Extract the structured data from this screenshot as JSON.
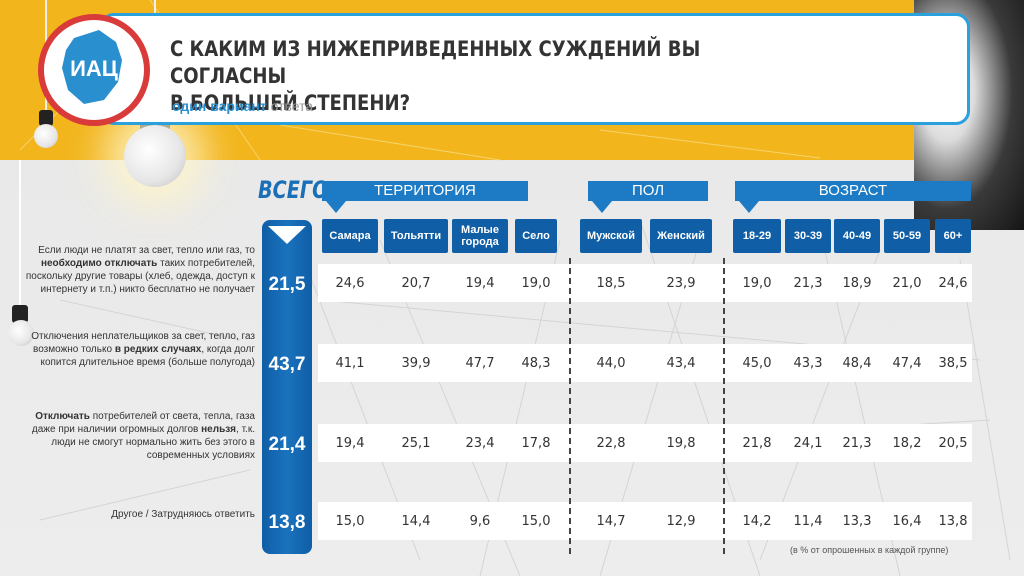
{
  "logo_text": "ИАЦ",
  "title_line1": "С КАКИМ ИЗ НИЖЕПРИВЕДЕННЫХ СУЖДЕНИЙ ВЫ СОГЛАСНЫ",
  "title_line2": "В БОЛЬШЕЙ СТЕПЕНИ?",
  "subtitle_accent": "один вариант",
  "subtitle_light": "ответа",
  "total_label": "ВСЕГО",
  "groups": [
    "ТЕРРИТОРИЯ",
    "ПОЛ",
    "ВОЗРАСТ"
  ],
  "columns": [
    {
      "label": "Самара"
    },
    {
      "label": "Тольятти"
    },
    {
      "label": "Малые города"
    },
    {
      "label": "Село"
    },
    {
      "label": "Мужской"
    },
    {
      "label": "Женский"
    },
    {
      "label": "18-29"
    },
    {
      "label": "30-39"
    },
    {
      "label": "40-49"
    },
    {
      "label": "50-59"
    },
    {
      "label": "60+"
    }
  ],
  "rows": [
    {
      "parts": [
        "Если люди не платят за свет, тепло или газ, то ",
        "необходимо отключать",
        " таких потребителей, поскольку другие товары (хлеб, одежда, доступ к интернету и т.п.) никто бесплатно не получает"
      ]
    },
    {
      "parts": [
        "Отключения неплательщиков за свет, тепло, газ возможно только ",
        "в редких случаях",
        ", когда долг копится длительное время (больше полугода)"
      ]
    },
    {
      "parts": [
        "",
        "Отключать",
        " потребителей от света, тепла, газа даже при наличии огромных долгов ",
        "нельзя",
        ", т.к. люди не смогут нормально жить без этого в современных условиях"
      ]
    },
    {
      "parts": [
        "Другое / Затрудняюсь ответить"
      ]
    }
  ],
  "chart_data": {
    "type": "table",
    "row_labels": [
      "Если люди не платят за свет, тепло или газ, то необходимо отключать таких потребителей, поскольку другие товары (хлеб, одежда, доступ к интернету и т.п.) никто бесплатно не получает",
      "Отключения неплательщиков за свет, тепло, газ возможно только в редких случаях, когда долг копится длительное время (больше полугода)",
      "Отключать потребителей от света, тепла, газа даже при наличии огромных долгов нельзя, т.к. люди не смогут нормально жить без этого в современных условиях",
      "Другое / Затрудняюсь ответить"
    ],
    "total": [
      "21,5",
      "43,7",
      "21,4",
      "13,8"
    ],
    "columns": [
      "Самара",
      "Тольятти",
      "Малые города",
      "Село",
      "Мужской",
      "Женский",
      "18-29",
      "30-39",
      "40-49",
      "50-59",
      "60+"
    ],
    "values": [
      [
        "24,6",
        "20,7",
        "19,4",
        "19,0",
        "18,5",
        "23,9",
        "19,0",
        "21,3",
        "18,9",
        "21,0",
        "24,6"
      ],
      [
        "41,1",
        "39,9",
        "47,7",
        "48,3",
        "44,0",
        "43,4",
        "45,0",
        "43,3",
        "48,4",
        "47,4",
        "38,5"
      ],
      [
        "19,4",
        "25,1",
        "23,4",
        "17,8",
        "22,8",
        "19,8",
        "21,8",
        "24,1",
        "21,3",
        "18,2",
        "20,5"
      ],
      [
        "15,0",
        "14,4",
        "9,6",
        "15,0",
        "14,7",
        "12,9",
        "14,2",
        "11,4",
        "13,3",
        "16,4",
        "13,8"
      ]
    ],
    "groups": [
      {
        "name": "ТЕРРИТОРИЯ",
        "columns": [
          "Самара",
          "Тольятти",
          "Малые города",
          "Село"
        ]
      },
      {
        "name": "ПОЛ",
        "columns": [
          "Мужской",
          "Женский"
        ]
      },
      {
        "name": "ВОЗРАСТ",
        "columns": [
          "18-29",
          "30-39",
          "40-49",
          "50-59",
          "60+"
        ]
      }
    ]
  },
  "footnote": "(в % от опрошенных в каждой группе)"
}
